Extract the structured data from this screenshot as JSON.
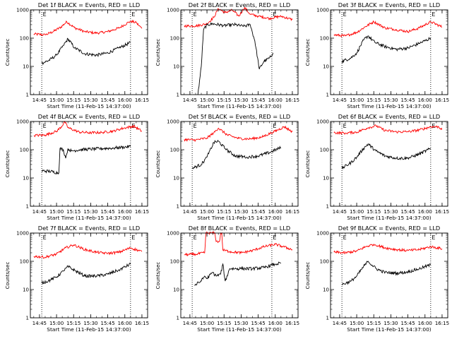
{
  "page": {
    "background": "#ffffff"
  },
  "colors": {
    "events": "#000000",
    "lld": "#ff0000",
    "axis": "#000000"
  },
  "chart_data": [
    {
      "type": "line",
      "title": "Det 1f BLACK = Events, RED = LLD",
      "ylabel": "Counts/sec",
      "xlabel": "Start Time (11-Feb-15 14:37:00)",
      "xlim": [
        "14:37",
        "16:20"
      ],
      "ylim": [
        1,
        1000
      ],
      "yscale": "log",
      "x_ticks": [
        "14:45",
        "15:00",
        "15:15",
        "15:30",
        "15:45",
        "16:00",
        "16:15"
      ],
      "y_ticks": [
        "1",
        "10",
        "100",
        "1000"
      ],
      "markers": [
        {
          "time": "14:47",
          "label": "E"
        },
        {
          "time": "16:05",
          "label": "E"
        }
      ],
      "series": [
        {
          "color": "#ff0000",
          "x": [
            "14:40",
            "14:50",
            "14:57",
            "15:04",
            "15:09",
            "15:16",
            "15:25",
            "15:35",
            "15:45",
            "15:55",
            "16:05",
            "16:10",
            "16:15"
          ],
          "values": [
            140,
            130,
            170,
            250,
            380,
            230,
            170,
            150,
            170,
            230,
            400,
            350,
            220
          ]
        },
        {
          "color": "#000000",
          "x": [
            "14:47",
            "14:53",
            "15:00",
            "15:06",
            "15:10",
            "15:16",
            "15:25",
            "15:35",
            "15:45",
            "15:55",
            "16:05"
          ],
          "values": [
            13,
            16,
            25,
            55,
            95,
            45,
            28,
            25,
            30,
            45,
            70
          ]
        }
      ]
    },
    {
      "type": "line",
      "title": "Det 2f BLACK = Events, RED = LLD",
      "ylabel": "Counts/sec",
      "xlabel": "Start Time (11-Feb-15 14:37:00)",
      "xlim": [
        "14:37",
        "16:20"
      ],
      "ylim": [
        1,
        1000
      ],
      "yscale": "log",
      "x_ticks": [
        "14:45",
        "15:00",
        "15:15",
        "15:30",
        "15:45",
        "16:00",
        "16:15"
      ],
      "y_ticks": [
        "1",
        "10",
        "100",
        "1000"
      ],
      "markers": [
        {
          "time": "14:47",
          "label": "E"
        },
        {
          "time": "15:57",
          "label": "E"
        }
      ],
      "series": [
        {
          "color": "#ff0000",
          "x": [
            "14:40",
            "14:50",
            "15:00",
            "15:06",
            "15:10",
            "15:16",
            "15:22",
            "15:28",
            "15:33",
            "15:38",
            "15:45",
            "15:55",
            "16:05",
            "16:15"
          ],
          "values": [
            270,
            270,
            320,
            550,
            1100,
            800,
            1000,
            600,
            1200,
            700,
            600,
            500,
            600,
            450
          ]
        },
        {
          "color": "#000000",
          "x": [
            "14:52",
            "14:55",
            "14:57",
            "15:00",
            "15:05",
            "15:15",
            "15:25",
            "15:32",
            "15:38",
            "15:42",
            "15:46",
            "15:50",
            "15:55",
            "15:58"
          ],
          "values": [
            1,
            10,
            200,
            300,
            320,
            280,
            300,
            260,
            300,
            80,
            8,
            15,
            20,
            30
          ]
        }
      ]
    },
    {
      "type": "line",
      "title": "Det 3f BLACK = Events, RED = LLD",
      "ylabel": "Counts/sec",
      "xlabel": "Start Time (11-Feb-15 14:37:00)",
      "xlim": [
        "14:37",
        "16:20"
      ],
      "ylim": [
        1,
        1000
      ],
      "yscale": "log",
      "x_ticks": [
        "14:45",
        "15:00",
        "15:15",
        "15:30",
        "15:45",
        "16:00",
        "16:15"
      ],
      "y_ticks": [
        "1",
        "10",
        "100",
        "1000"
      ],
      "markers": [
        {
          "time": "14:47",
          "label": "E"
        },
        {
          "time": "16:05",
          "label": "E"
        }
      ],
      "series": [
        {
          "color": "#ff0000",
          "x": [
            "14:40",
            "14:50",
            "15:00",
            "15:08",
            "15:15",
            "15:25",
            "15:35",
            "15:45",
            "15:55",
            "16:05",
            "16:15"
          ],
          "values": [
            130,
            120,
            160,
            260,
            380,
            230,
            200,
            170,
            230,
            380,
            250
          ]
        },
        {
          "color": "#000000",
          "x": [
            "14:47",
            "14:55",
            "15:00",
            "15:06",
            "15:10",
            "15:16",
            "15:25",
            "15:35",
            "15:45",
            "15:55",
            "16:05"
          ],
          "values": [
            15,
            20,
            30,
            85,
            120,
            70,
            50,
            40,
            45,
            65,
            100
          ]
        }
      ]
    },
    {
      "type": "line",
      "title": "Det 4f BLACK = Events, RED = LLD",
      "ylabel": "Counts/sec",
      "xlabel": "Start Time (11-Feb-15 14:37:00)",
      "xlim": [
        "14:37",
        "16:20"
      ],
      "ylim": [
        1,
        1000
      ],
      "yscale": "log",
      "x_ticks": [
        "14:45",
        "15:00",
        "15:15",
        "15:30",
        "15:45",
        "16:00",
        "16:15"
      ],
      "y_ticks": [
        "1",
        "10",
        "100",
        "1000"
      ],
      "markers": [
        {
          "time": "14:47",
          "label": "E"
        },
        {
          "time": "16:05",
          "label": "E"
        }
      ],
      "series": [
        {
          "color": "#ff0000",
          "x": [
            "14:40",
            "14:50",
            "15:00",
            "15:05",
            "15:07",
            "15:10",
            "15:20",
            "15:30",
            "15:40",
            "15:50",
            "16:00",
            "16:08",
            "16:15"
          ],
          "values": [
            320,
            330,
            450,
            700,
            1000,
            600,
            420,
            400,
            410,
            460,
            600,
            680,
            450
          ]
        },
        {
          "color": "#000000",
          "x": [
            "14:47",
            "14:55",
            "15:02",
            "15:03",
            "15:06",
            "15:08",
            "15:10",
            "15:13",
            "15:20",
            "15:30",
            "15:40",
            "15:50",
            "16:00",
            "16:05"
          ],
          "values": [
            18,
            17,
            15,
            110,
            100,
            50,
            110,
            90,
            100,
            105,
            110,
            115,
            125,
            130
          ]
        }
      ]
    },
    {
      "type": "line",
      "title": "Det 5f BLACK = Events, RED = LLD",
      "ylabel": "Counts/sec",
      "xlabel": "Start Time (11-Feb-15 14:37:00)",
      "xlim": [
        "14:37",
        "16:20"
      ],
      "ylim": [
        1,
        1000
      ],
      "yscale": "log",
      "x_ticks": [
        "14:45",
        "15:00",
        "15:15",
        "15:30",
        "15:45",
        "16:00",
        "16:15"
      ],
      "y_ticks": [
        "1",
        "10",
        "100",
        "1000"
      ],
      "markers": [
        {
          "time": "14:47",
          "label": "E"
        },
        {
          "time": "15:57",
          "label": "E"
        }
      ],
      "series": [
        {
          "color": "#ff0000",
          "x": [
            "14:40",
            "14:50",
            "15:00",
            "15:06",
            "15:10",
            "15:18",
            "15:28",
            "15:38",
            "15:48",
            "15:58",
            "16:08",
            "16:15"
          ],
          "values": [
            230,
            220,
            260,
            400,
            580,
            330,
            250,
            240,
            280,
            420,
            650,
            430
          ]
        },
        {
          "color": "#000000",
          "x": [
            "14:47",
            "14:55",
            "15:00",
            "15:06",
            "15:10",
            "15:17",
            "15:25",
            "15:35",
            "15:45",
            "15:55",
            "16:05"
          ],
          "values": [
            22,
            30,
            55,
            180,
            200,
            100,
            60,
            55,
            60,
            80,
            120
          ]
        }
      ]
    },
    {
      "type": "line",
      "title": "Det 6f BLACK = Events, RED = LLD",
      "ylabel": "Counts/sec",
      "xlabel": "Start Time (11-Feb-15 14:37:00)",
      "xlim": [
        "14:37",
        "16:20"
      ],
      "ylim": [
        1,
        1000
      ],
      "yscale": "log",
      "x_ticks": [
        "14:45",
        "15:00",
        "15:15",
        "15:30",
        "15:45",
        "16:00",
        "16:15"
      ],
      "y_ticks": [
        "1",
        "10",
        "100",
        "1000"
      ],
      "markers": [
        {
          "time": "14:47",
          "label": "E"
        },
        {
          "time": "16:05",
          "label": "E"
        }
      ],
      "series": [
        {
          "color": "#ff0000",
          "x": [
            "14:40",
            "14:50",
            "15:00",
            "15:10",
            "15:17",
            "15:25",
            "15:35",
            "15:45",
            "15:55",
            "16:05",
            "16:12",
            "16:15"
          ],
          "values": [
            400,
            390,
            420,
            600,
            700,
            480,
            430,
            430,
            500,
            650,
            650,
            520
          ]
        },
        {
          "color": "#000000",
          "x": [
            "14:47",
            "14:55",
            "15:00",
            "15:06",
            "15:10",
            "15:17",
            "15:25",
            "15:35",
            "15:45",
            "15:55",
            "16:05"
          ],
          "values": [
            22,
            35,
            55,
            110,
            160,
            90,
            60,
            50,
            50,
            70,
            110
          ]
        }
      ]
    },
    {
      "type": "line",
      "title": "Det 7f BLACK = Events, RED = LLD",
      "ylabel": "Counts/sec",
      "xlabel": "Start Time (11-Feb-15 14:37:00)",
      "xlim": [
        "14:37",
        "16:20"
      ],
      "ylim": [
        1,
        1000
      ],
      "yscale": "log",
      "x_ticks": [
        "14:45",
        "15:00",
        "15:15",
        "15:30",
        "15:45",
        "16:00",
        "16:15"
      ],
      "y_ticks": [
        "1",
        "10",
        "100",
        "1000"
      ],
      "markers": [
        {
          "time": "14:47",
          "label": "E"
        },
        {
          "time": "16:05",
          "label": "E"
        }
      ],
      "series": [
        {
          "color": "#ff0000",
          "x": [
            "14:40",
            "14:50",
            "15:00",
            "15:08",
            "15:15",
            "15:25",
            "15:35",
            "15:45",
            "15:55",
            "16:05",
            "16:15"
          ],
          "values": [
            150,
            140,
            180,
            300,
            380,
            260,
            210,
            190,
            210,
            300,
            220
          ]
        },
        {
          "color": "#000000",
          "x": [
            "14:47",
            "14:55",
            "15:00",
            "15:06",
            "15:10",
            "15:17",
            "15:25",
            "15:35",
            "15:45",
            "15:55",
            "16:05"
          ],
          "values": [
            17,
            22,
            28,
            45,
            65,
            45,
            30,
            30,
            35,
            50,
            80
          ]
        }
      ]
    },
    {
      "type": "line",
      "title": "Det 8f BLACK = Events, RED = LLD",
      "ylabel": "Counts/sec",
      "xlabel": "Start Time (11-Feb-15 14:37:00)",
      "xlim": [
        "14:37",
        "16:20"
      ],
      "ylim": [
        1,
        1000
      ],
      "yscale": "log",
      "x_ticks": [
        "14:45",
        "15:00",
        "15:15",
        "15:30",
        "15:45",
        "16:00",
        "16:15"
      ],
      "y_ticks": [
        "1",
        "10",
        "100",
        "1000"
      ],
      "markers": [
        {
          "time": "14:47",
          "label": "E"
        },
        {
          "time": "15:57",
          "label": "E"
        }
      ],
      "series": [
        {
          "color": "#ff0000",
          "x": [
            "14:40",
            "14:50",
            "14:58",
            "14:59",
            "15:07",
            "15:08",
            "15:11",
            "15:12",
            "15:13",
            "15:14",
            "15:20",
            "15:30",
            "15:40",
            "15:50",
            "16:00",
            "16:08",
            "16:15"
          ],
          "values": [
            170,
            180,
            200,
            1000,
            1000,
            500,
            500,
            1000,
            1000,
            250,
            220,
            200,
            240,
            330,
            400,
            320,
            260
          ]
        },
        {
          "color": "#000000",
          "x": [
            "14:49",
            "14:55",
            "14:58",
            "15:00",
            "15:05",
            "15:08",
            "15:12",
            "15:14",
            "15:16",
            "15:20",
            "15:30",
            "15:40",
            "15:50",
            "16:00",
            "16:05"
          ],
          "values": [
            14,
            20,
            30,
            25,
            40,
            30,
            35,
            80,
            20,
            55,
            55,
            55,
            60,
            80,
            85
          ]
        }
      ]
    },
    {
      "type": "line",
      "title": "Det 9f BLACK = Events, RED = LLD",
      "ylabel": "Counts/sec",
      "xlabel": "Start Time (11-Feb-15 14:37:00)",
      "xlim": [
        "14:37",
        "16:20"
      ],
      "ylim": [
        1,
        1000
      ],
      "yscale": "log",
      "x_ticks": [
        "14:45",
        "15:00",
        "15:15",
        "15:30",
        "15:45",
        "16:00",
        "16:15"
      ],
      "y_ticks": [
        "1",
        "10",
        "100",
        "1000"
      ],
      "markers": [
        {
          "time": "14:47",
          "label": "E"
        },
        {
          "time": "16:05",
          "label": "E"
        }
      ],
      "series": [
        {
          "color": "#ff0000",
          "x": [
            "14:40",
            "14:50",
            "15:00",
            "15:08",
            "15:15",
            "15:25",
            "15:35",
            "15:45",
            "15:55",
            "16:05",
            "16:15"
          ],
          "values": [
            210,
            200,
            230,
            330,
            400,
            300,
            260,
            240,
            260,
            330,
            280
          ]
        },
        {
          "color": "#000000",
          "x": [
            "14:47",
            "14:55",
            "15:00",
            "15:06",
            "15:10",
            "15:17",
            "15:25",
            "15:35",
            "15:45",
            "15:55",
            "16:05"
          ],
          "values": [
            15,
            20,
            30,
            65,
            100,
            55,
            40,
            38,
            42,
            55,
            75
          ]
        }
      ]
    }
  ]
}
